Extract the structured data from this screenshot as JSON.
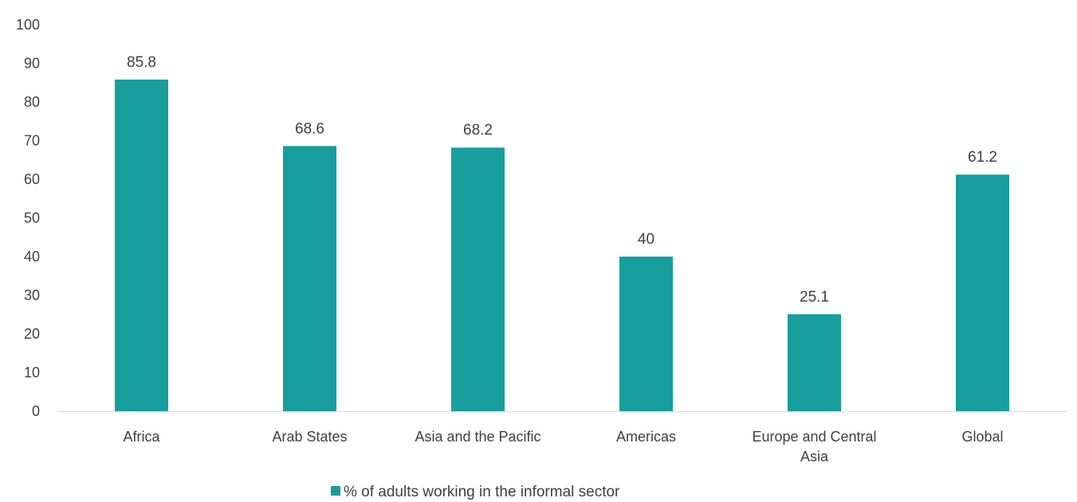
{
  "chart_data": {
    "type": "bar",
    "categories": [
      [
        "Africa"
      ],
      [
        "Arab States"
      ],
      [
        "Asia and the Pacific"
      ],
      [
        "Americas"
      ],
      [
        "Europe and Central",
        "Asia"
      ],
      [
        "Global"
      ]
    ],
    "series": [
      {
        "name": "% of adults working in the informal sector",
        "values": [
          85.8,
          68.6,
          68.2,
          40,
          25.1,
          61.2
        ],
        "data_labels": [
          "85.8",
          "68.6",
          "68.2",
          "40",
          "25.1",
          "61.2"
        ],
        "color": "#179e9c"
      }
    ],
    "ylim": [
      0,
      100
    ],
    "yticks": [
      "0",
      "10",
      "20",
      "30",
      "40",
      "50",
      "60",
      "70",
      "80",
      "90",
      "100"
    ],
    "ytick_values": [
      0,
      10,
      20,
      30,
      40,
      50,
      60,
      70,
      80,
      90,
      100
    ],
    "grid": false,
    "legend_position": "bottom",
    "axis_color": "#d9d9d9",
    "text_color": "#404040"
  }
}
